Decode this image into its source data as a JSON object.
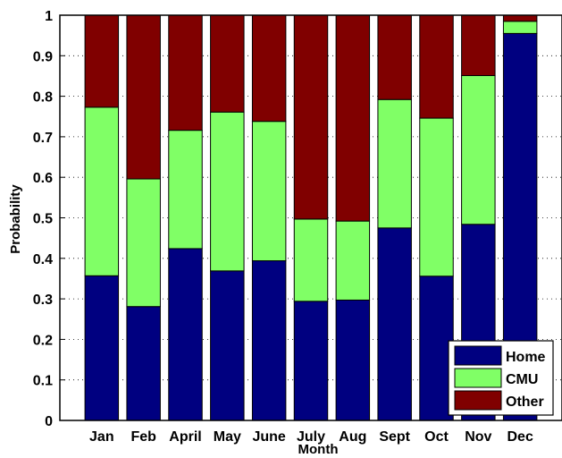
{
  "chart_data": {
    "type": "bar",
    "stacked": true,
    "categories": [
      "Jan",
      "Feb",
      "April",
      "May",
      "June",
      "July",
      "Aug",
      "Sept",
      "Oct",
      "Nov",
      "Dec"
    ],
    "series": [
      {
        "name": "Home",
        "color": "#000080",
        "values": [
          0.357,
          0.281,
          0.424,
          0.369,
          0.394,
          0.294,
          0.297,
          0.475,
          0.356,
          0.484,
          0.955
        ]
      },
      {
        "name": "CMU",
        "color": "#80ff66",
        "values": [
          0.416,
          0.315,
          0.292,
          0.392,
          0.344,
          0.203,
          0.195,
          0.317,
          0.39,
          0.367,
          0.03
        ]
      },
      {
        "name": "Other",
        "color": "#800000",
        "values": [
          0.227,
          0.404,
          0.284,
          0.239,
          0.262,
          0.503,
          0.508,
          0.208,
          0.254,
          0.149,
          0.015
        ]
      }
    ],
    "xlabel": "Month",
    "ylabel": "Probability",
    "ylim": [
      0,
      1
    ],
    "yticks": [
      "0",
      "0.1",
      "0.2",
      "0.3",
      "0.4",
      "0.5",
      "0.6",
      "0.7",
      "0.8",
      "0.9",
      "1"
    ],
    "grid": "dotted",
    "legend_position": "bottom-right"
  }
}
